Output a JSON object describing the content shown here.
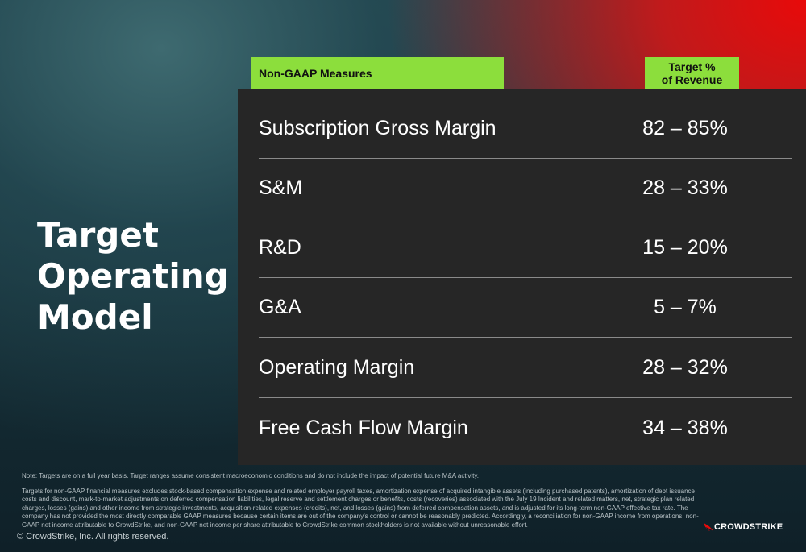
{
  "slide": {
    "title": "Target Operating Model",
    "header": {
      "measures_label": "Non-GAAP Measures",
      "target_label_line1": "Target %",
      "target_label_line2": "of Revenue"
    },
    "rows": [
      {
        "label": "Subscription Gross Margin",
        "value": "82 – 85%"
      },
      {
        "label": "S&M",
        "value": "28 – 33%"
      },
      {
        "label": "R&D",
        "value": "15 – 20%"
      },
      {
        "label": "G&A",
        "value": "5 – 7%"
      },
      {
        "label": "Operating Margin",
        "value": "28 – 32%"
      },
      {
        "label": "Free Cash Flow Margin",
        "value": "34 – 38%"
      }
    ],
    "note": "Note: Targets are on a full year basis. Target ranges assume consistent macroeconomic conditions and do not include the impact of potential future M&A activity.",
    "footnote": "Targets for non-GAAP financial measures excludes stock-based compensation expense and related employer payroll taxes, amortization expense of acquired intangible assets (including purchased patents), amortization of debt issuance costs and discount, mark-to-market adjustments on deferred compensation liabilities, legal reserve and settlement charges or benefits, costs (recoveries) associated with the July 19 Incident and related matters, net, strategic plan related charges, losses (gains) and other income from strategic investments, acquisition-related expenses (credits), net, and losses (gains) from deferred compensation assets, and is adjusted for its long-term non-GAAP effective tax rate. The company has not provided the most directly comparable GAAP measures because certain items are out of the company's control or cannot be reasonably predicted. Accordingly, a reconciliation for non-GAAP income from operations, non-GAAP net income attributable to CrowdStrike, and non-GAAP net income per share attributable to CrowdStrike common stockholders is not available without unreasonable effort.",
    "copyright": "© CrowdStrike, Inc. All rights reserved.",
    "logo_text": "CROWDSTRIKE",
    "colors": {
      "accent_green": "#8cde3c",
      "panel_bg": "#262626",
      "brand_red": "#e80a0a"
    }
  }
}
